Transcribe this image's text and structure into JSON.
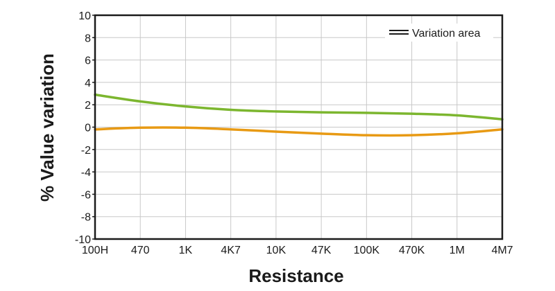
{
  "chart_data": {
    "type": "line",
    "title": "",
    "xlabel": "Resistance",
    "ylabel": "% Value variation",
    "categories": [
      "100H",
      "470",
      "1K",
      "4K7",
      "10K",
      "47K",
      "100K",
      "470K",
      "1M",
      "4M7"
    ],
    "ylim": [
      -10,
      10
    ],
    "yticks": [
      -10,
      -8,
      -6,
      -4,
      -2,
      0,
      2,
      4,
      6,
      8,
      10
    ],
    "grid": true,
    "legend": {
      "label": "Variation area",
      "position": "top-right"
    },
    "series": [
      {
        "color": "#7cb62f",
        "values": [
          2.9,
          2.3,
          1.85,
          1.55,
          1.4,
          1.32,
          1.28,
          1.2,
          1.05,
          0.7
        ]
      },
      {
        "color": "#e89a14",
        "values": [
          -0.2,
          -0.05,
          -0.05,
          -0.2,
          -0.4,
          -0.58,
          -0.72,
          -0.72,
          -0.55,
          -0.2
        ]
      }
    ],
    "colors": {
      "axis": "#1a1a1a",
      "grid": "#c8c8c8"
    }
  }
}
